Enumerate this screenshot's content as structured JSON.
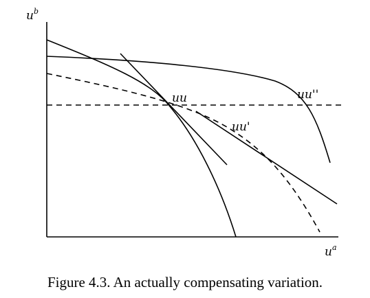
{
  "axes": {
    "y_label": "u",
    "y_superscript": "b",
    "x_label": "u",
    "x_superscript": "a"
  },
  "curve_labels": {
    "uu": "uu",
    "uu_prime": "uu'",
    "uu_double_prime": "uu''"
  },
  "caption": "Figure 4.3. An actually compensating variation."
}
